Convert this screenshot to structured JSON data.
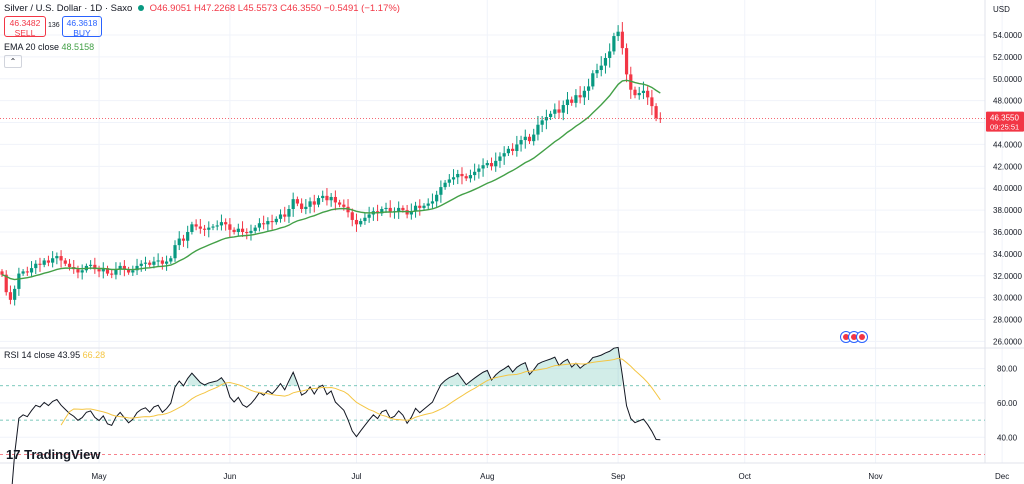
{
  "header": {
    "title": "Silver / U.S. Dollar · 1D · Saxo",
    "open": "O46.9051",
    "high": "H47.2268",
    "low": "L45.5573",
    "close": "C46.3550",
    "change": "−0.5491 (−1.17%)"
  },
  "trade": {
    "sell_price": "46.3482",
    "sell_label": "SELL",
    "spread": "136",
    "buy_price": "46.3618",
    "buy_label": "BUY"
  },
  "ema_legend": {
    "label": "EMA 20 close",
    "value": "48.5158"
  },
  "rsi_legend": {
    "label": "RSI 14 close",
    "value": "43.95",
    "ma_value": "66.28"
  },
  "currency": "USD",
  "price_tag": {
    "price": "46.3550",
    "countdown": "09:25:51"
  },
  "logo": "TradingView",
  "colors": {
    "up": "#089981",
    "down": "#f23645",
    "ema": "#43a047",
    "rsi": "#131722",
    "rsi_ma": "#f4c542",
    "tag": "#f23645"
  },
  "chart_data": [
    {
      "type": "candlestick",
      "title": "Silver / U.S. Dollar · 1D · Saxo",
      "ylim": [
        25.4,
        56.1
      ],
      "y_ticks": [
        "26.0000",
        "28.0000",
        "30.0000",
        "32.0000",
        "34.0000",
        "36.0000",
        "38.0000",
        "40.0000",
        "42.0000",
        "44.0000",
        "46.0000",
        "48.0000",
        "50.0000",
        "52.0000",
        "54.0000"
      ],
      "x_labels": [
        "May",
        "Jun",
        "Jul",
        "Aug",
        "Sep",
        "Oct",
        "Nov",
        "Dec"
      ],
      "x_label_days": [
        26,
        57,
        87,
        118,
        149,
        179,
        210,
        240
      ],
      "first_day": 3,
      "close": [
        32.1,
        30.5,
        29.8,
        30.8,
        32.2,
        32.4,
        32.3,
        32.7,
        33.1,
        33.0,
        33.4,
        33.2,
        33.6,
        33.8,
        33.4,
        33.1,
        32.8,
        32.6,
        32.3,
        32.5,
        32.9,
        33.0,
        32.6,
        32.4,
        32.7,
        32.2,
        32.1,
        32.6,
        32.9,
        32.6,
        32.3,
        32.5,
        32.9,
        33.1,
        33.2,
        33.0,
        33.3,
        33.4,
        33.1,
        33.3,
        33.6,
        34.8,
        35.4,
        35.2,
        36.0,
        36.7,
        36.5,
        36.3,
        36.2,
        36.4,
        36.5,
        36.6,
        36.9,
        36.7,
        36.2,
        36.0,
        36.3,
        36.0,
        35.9,
        36.1,
        36.4,
        36.8,
        36.7,
        37.0,
        36.9,
        37.2,
        37.6,
        37.4,
        38.1,
        39.0,
        38.6,
        38.1,
        38.3,
        38.8,
        38.5,
        39.1,
        39.3,
        38.9,
        39.2,
        38.7,
        38.5,
        38.3,
        37.8,
        37.1,
        36.7,
        37.0,
        37.3,
        37.6,
        37.9,
        37.7,
        38.1,
        38.2,
        37.8,
        37.9,
        38.2,
        38.0,
        37.6,
        37.9,
        38.4,
        38.2,
        38.4,
        38.6,
        38.8,
        39.4,
        40.1,
        40.5,
        40.8,
        41.0,
        41.3,
        41.1,
        40.9,
        41.2,
        41.5,
        41.8,
        42.1,
        42.3,
        42.0,
        42.5,
        42.9,
        43.2,
        43.6,
        43.4,
        44.0,
        44.4,
        44.7,
        44.3,
        44.9,
        45.8,
        46.2,
        46.5,
        46.8,
        47.2,
        46.9,
        47.6,
        48.1,
        47.8,
        48.5,
        48.3,
        48.9,
        49.3,
        50.5,
        50.8,
        51.2,
        51.9,
        52.5,
        53.9,
        54.3,
        52.8,
        50.4,
        49.0,
        48.5,
        48.7,
        48.9,
        48.3,
        47.5,
        46.4,
        46.36
      ],
      "ema20_last": 48.5158,
      "last_price": 46.355
    },
    {
      "type": "line",
      "title": "RSI 14 close",
      "ylim": [
        25,
        92
      ],
      "y_ticks": [
        "40.00",
        "60.00",
        "80.00"
      ],
      "levels": [
        30,
        50,
        70
      ],
      "rsi_last": 43.95,
      "rsi_ma_last": 66.28
    }
  ]
}
